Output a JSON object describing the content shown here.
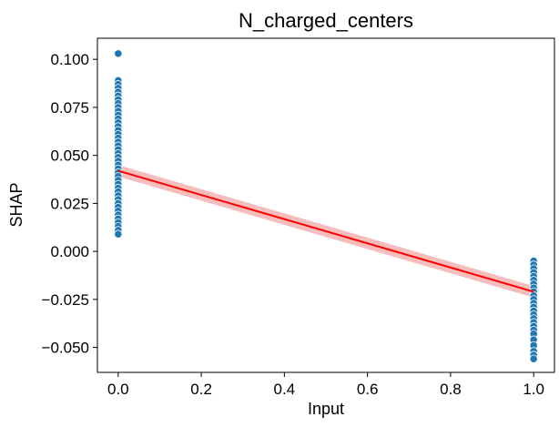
{
  "chart_data": {
    "type": "scatter",
    "title": "N_charged_centers",
    "xlabel": "Input",
    "ylabel": "SHAP",
    "xlim": [
      -0.05,
      1.05
    ],
    "ylim": [
      -0.063,
      0.111
    ],
    "x_ticks": [
      0.0,
      0.2,
      0.4,
      0.6,
      0.8,
      1.0
    ],
    "x_tick_labels": [
      "0.0",
      "0.2",
      "0.4",
      "0.6",
      "0.8",
      "1.0"
    ],
    "y_ticks": [
      -0.05,
      -0.025,
      0.0,
      0.025,
      0.05,
      0.075,
      0.1
    ],
    "y_tick_labels": [
      "−0.050",
      "−0.025",
      "0.000",
      "0.025",
      "0.050",
      "0.075",
      "0.100"
    ],
    "grid": false,
    "series": [
      {
        "kind": "scatter",
        "color": "#1f77b4",
        "points": [
          [
            0,
            0.103
          ],
          [
            0,
            0.089
          ],
          [
            0,
            0.087
          ],
          [
            0,
            0.085
          ],
          [
            0,
            0.083
          ],
          [
            0,
            0.081
          ],
          [
            0,
            0.079
          ],
          [
            0,
            0.077
          ],
          [
            0,
            0.075
          ],
          [
            0,
            0.073
          ],
          [
            0,
            0.071
          ],
          [
            0,
            0.069
          ],
          [
            0,
            0.067
          ],
          [
            0,
            0.065
          ],
          [
            0,
            0.063
          ],
          [
            0,
            0.061
          ],
          [
            0,
            0.059
          ],
          [
            0,
            0.057
          ],
          [
            0,
            0.055
          ],
          [
            0,
            0.053
          ],
          [
            0,
            0.051
          ],
          [
            0,
            0.049
          ],
          [
            0,
            0.047
          ],
          [
            0,
            0.045
          ],
          [
            0,
            0.043
          ],
          [
            0,
            0.041
          ],
          [
            0,
            0.039
          ],
          [
            0,
            0.037
          ],
          [
            0,
            0.035
          ],
          [
            0,
            0.033
          ],
          [
            0,
            0.031
          ],
          [
            0,
            0.029
          ],
          [
            0,
            0.027
          ],
          [
            0,
            0.025
          ],
          [
            0,
            0.023
          ],
          [
            0,
            0.021
          ],
          [
            0,
            0.019
          ],
          [
            0,
            0.017
          ],
          [
            0,
            0.015
          ],
          [
            0,
            0.013
          ],
          [
            0,
            0.011
          ],
          [
            0,
            0.009
          ],
          [
            1,
            -0.005
          ],
          [
            1,
            -0.007
          ],
          [
            1,
            -0.009
          ],
          [
            1,
            -0.011
          ],
          [
            1,
            -0.013
          ],
          [
            1,
            -0.015
          ],
          [
            1,
            -0.017
          ],
          [
            1,
            -0.019
          ],
          [
            1,
            -0.021
          ],
          [
            1,
            -0.023
          ],
          [
            1,
            -0.025
          ],
          [
            1,
            -0.027
          ],
          [
            1,
            -0.029
          ],
          [
            1,
            -0.031
          ],
          [
            1,
            -0.033
          ],
          [
            1,
            -0.035
          ],
          [
            1,
            -0.037
          ],
          [
            1,
            -0.039
          ],
          [
            1,
            -0.041
          ],
          [
            1,
            -0.043
          ],
          [
            1,
            -0.046
          ],
          [
            1,
            -0.049
          ],
          [
            1,
            -0.052
          ],
          [
            1,
            -0.054
          ],
          [
            1,
            -0.056
          ]
        ]
      },
      {
        "kind": "regression",
        "color": "#ff0000",
        "band_color": "#f4a6a6",
        "x": [
          0,
          1
        ],
        "y": [
          0.042,
          -0.021
        ],
        "ci_lower": [
          0.039,
          -0.024
        ],
        "ci_upper": [
          0.045,
          -0.018
        ]
      }
    ]
  }
}
